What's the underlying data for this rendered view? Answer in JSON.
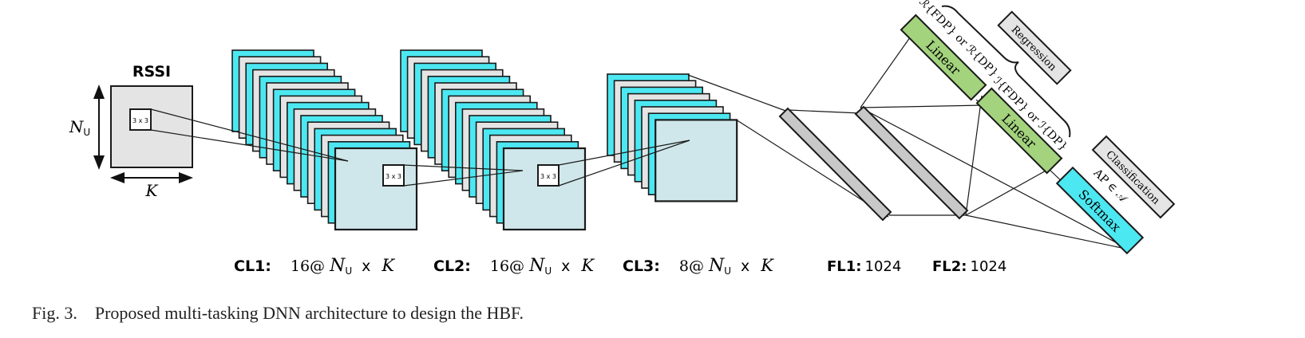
{
  "caption": {
    "figure_label": "Fig. 3.",
    "text": "Proposed multi-tasking DNN architecture to design the HBF."
  },
  "input": {
    "title": "RSSI",
    "height_symbol": "N",
    "height_subscript": "U",
    "width_symbol": "K",
    "kernel_label": "3 x 3"
  },
  "layers": [
    {
      "name": "CL1:",
      "count": "16@",
      "dim_symbol": "N",
      "dim_sub": "U",
      "times": "x",
      "dim2": "K",
      "kernel_label": "3 x 3"
    },
    {
      "name": "CL2:",
      "count": "16@",
      "dim_symbol": "N",
      "dim_sub": "U",
      "times": "x",
      "dim2": "K",
      "kernel_label": "3 x 3"
    },
    {
      "name": "CL3:",
      "count": "8@",
      "dim_symbol": "N",
      "dim_sub": "U",
      "times": "x",
      "dim2": "K"
    },
    {
      "name": "FL1:",
      "units": "1024"
    },
    {
      "name": "FL2:",
      "units": "1024"
    }
  ],
  "heads": {
    "linear1": "Linear",
    "linear2": "Linear",
    "softmax": "Softmax",
    "brace1_label": "ℛ{FDP} or ℛ{DP}",
    "brace2_label": "ℐ{FDP} or ℐ{DP}",
    "regression": "Regression",
    "classification": "Classification",
    "ap_label": "AP ∈ 𝒜"
  },
  "colors": {
    "cyan": "#4ce8f2",
    "gray_panel": "#e4e4e4",
    "green": "#a3d37d",
    "stroke": "#1a1a1a",
    "fc_gray": "#c8c8c8"
  }
}
